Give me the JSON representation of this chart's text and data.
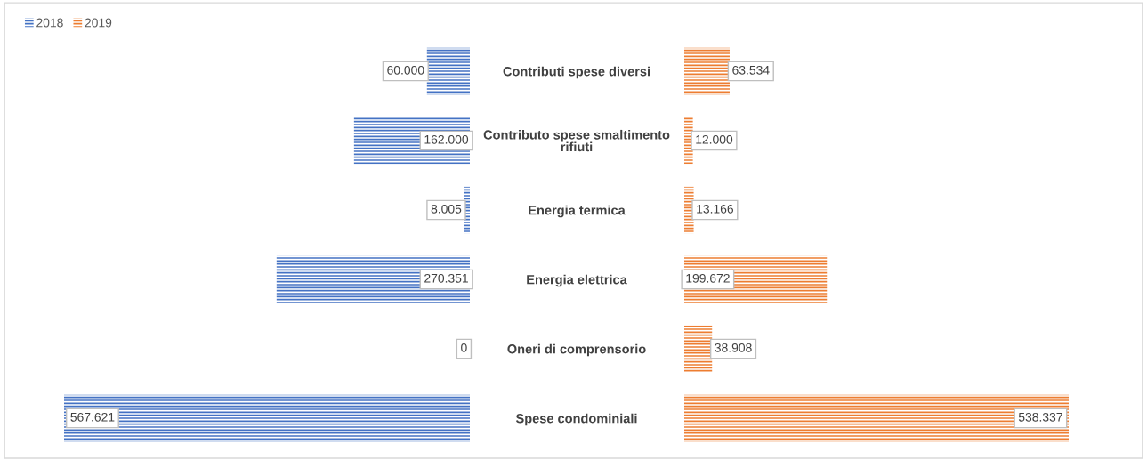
{
  "chart_data": [
    {
      "type": "bar",
      "orientation": "horizontal",
      "categories": [
        "Contributi spese diversi",
        "Contributo spese smaltimento rifiuti",
        "Energia termica",
        "Energia elettrica",
        "Oneri di comprensorio",
        "Spese condominiali"
      ],
      "series": [
        {
          "name": "2018",
          "color": "#4472c4",
          "values": [
            60000,
            162000,
            8005,
            270351,
            0,
            567621
          ],
          "value_labels": [
            "60.000",
            "162.000",
            "8.005",
            "270.351",
            "0",
            "567.621"
          ]
        }
      ],
      "xlim": [
        567621,
        0
      ],
      "tick_labels": "y",
      "legend": "top left"
    },
    {
      "type": "bar",
      "orientation": "horizontal",
      "categories": [
        null,
        null,
        null,
        null,
        null,
        null
      ],
      "series": [
        {
          "name": "2019",
          "color": "#ed7d31",
          "values": [
            63534,
            12000,
            13166,
            199672,
            38908,
            538337
          ],
          "value_labels": [
            "63.534",
            "12.000",
            "13.166",
            "199.672",
            "38.908",
            "538.337"
          ]
        }
      ],
      "xlim": [
        0,
        538337
      ],
      "tick_labels": "y",
      "legend": "top left"
    }
  ]
}
